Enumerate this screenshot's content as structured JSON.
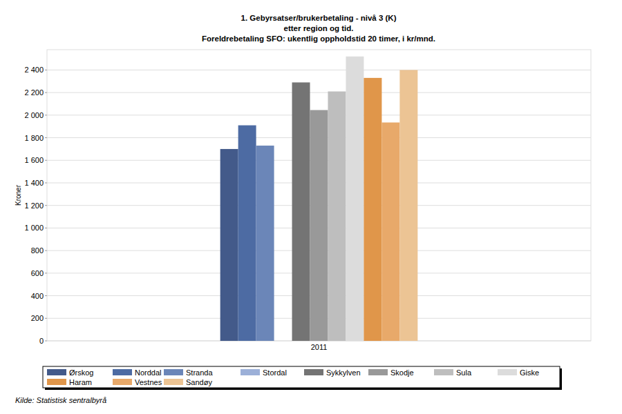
{
  "chart_data": {
    "type": "bar",
    "title": [
      "1. Gebyrsatser/brukerbetaling - nivå 3 (K)",
      "etter region og tid.",
      "Foreldrebetaling SFO: ukentlig oppholdstid 20 timer, i kr/mnd."
    ],
    "y_label": "Kroner",
    "source": "Kilde: Statistisk sentralbyrå",
    "categories": [
      "2011"
    ],
    "series": [
      {
        "name": "Ørskog",
        "color": "#435a8a",
        "values": [
          1700
        ]
      },
      {
        "name": "Norddal",
        "color": "#4d6ba3",
        "values": [
          1910
        ]
      },
      {
        "name": "Stranda",
        "color": "#6b86b8",
        "values": [
          1730
        ]
      },
      {
        "name": "Stordal",
        "color": "#9cb0d8",
        "values": [
          null
        ]
      },
      {
        "name": "Sykkylven",
        "color": "#747474",
        "values": [
          2290
        ]
      },
      {
        "name": "Skodje",
        "color": "#999999",
        "values": [
          2045
        ]
      },
      {
        "name": "Sula",
        "color": "#bebebe",
        "values": [
          2210
        ]
      },
      {
        "name": "Giske",
        "color": "#dcdcdc",
        "values": [
          2520
        ]
      },
      {
        "name": "Haram",
        "color": "#e0964a",
        "values": [
          2330
        ]
      },
      {
        "name": "Vestnes",
        "color": "#e8a96a",
        "values": [
          1935
        ]
      },
      {
        "name": "Sandøy",
        "color": "#ecc494",
        "values": [
          2400
        ]
      }
    ],
    "ylim": [
      0,
      2580
    ],
    "yticks": [
      0,
      200,
      400,
      600,
      800,
      {
        "value": 1000,
        "label": "1 000"
      },
      {
        "value": 1200,
        "label": "1 200"
      },
      {
        "value": 1400,
        "label": "1 400"
      },
      {
        "value": 1600,
        "label": "1 600"
      },
      {
        "value": 1800,
        "label": "1 800"
      },
      {
        "value": 2000,
        "label": "2 000"
      },
      {
        "value": 2200,
        "label": "2 200"
      },
      {
        "value": 2400,
        "label": "2 400"
      }
    ],
    "grid": true,
    "legend": "bottom"
  }
}
